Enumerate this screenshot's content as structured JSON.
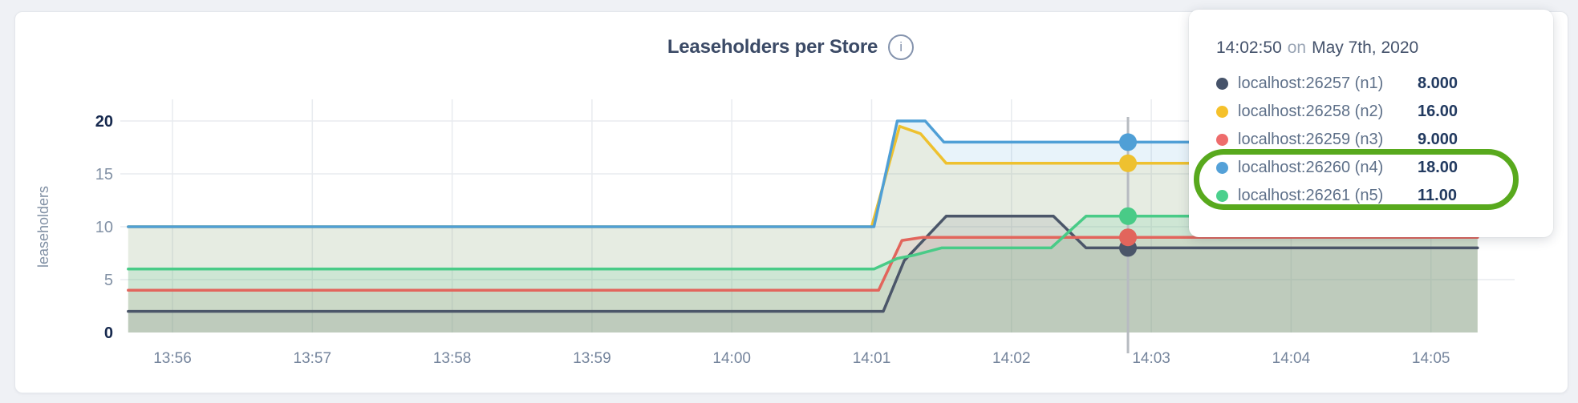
{
  "page": {
    "background": "#eff1f5"
  },
  "header": {
    "title": "Leaseholders per Store",
    "info_icon_char": "i"
  },
  "tooltip": {
    "time": "14:02:50",
    "on_word": "on",
    "date": "May 7th, 2020",
    "rows": [
      {
        "color": "#46536a",
        "label": "localhost:26257 (n1)",
        "value": "8.000"
      },
      {
        "color": "#f5c12b",
        "label": "localhost:26258 (n2)",
        "value": "16.00"
      },
      {
        "color": "#ee6c6c",
        "label": "localhost:26259 (n3)",
        "value": "9.000"
      },
      {
        "color": "#54a1d8",
        "label": "localhost:26260 (n4)",
        "value": "18.00"
      },
      {
        "color": "#4bd08d",
        "label": "localhost:26261 (n5)",
        "value": "11.00"
      }
    ],
    "annotation_color": "#58a91d"
  },
  "chart_data": {
    "type": "area",
    "title": "Leaseholders per Store",
    "xlabel": "",
    "ylabel": "leaseholders",
    "ylim": [
      0,
      20
    ],
    "grid": true,
    "time_origin": "13:55:00",
    "x_ticks": [
      {
        "t": 60,
        "label": "13:56"
      },
      {
        "t": 120,
        "label": "13:57"
      },
      {
        "t": 180,
        "label": "13:58"
      },
      {
        "t": 240,
        "label": "13:59"
      },
      {
        "t": 300,
        "label": "14:00"
      },
      {
        "t": 360,
        "label": "14:01"
      },
      {
        "t": 420,
        "label": "14:02"
      },
      {
        "t": 480,
        "label": "14:03"
      },
      {
        "t": 540,
        "label": "14:04"
      },
      {
        "t": 600,
        "label": "14:05"
      }
    ],
    "y_ticks": [
      {
        "v": 0,
        "label": "0",
        "strong": true
      },
      {
        "v": 5,
        "label": "5",
        "strong": false
      },
      {
        "v": 10,
        "label": "10",
        "strong": false
      },
      {
        "v": 15,
        "label": "15",
        "strong": false
      },
      {
        "v": 20,
        "label": "20",
        "strong": true
      }
    ],
    "series": [
      {
        "id": "n1",
        "name": "localhost:26257 (n1)",
        "color": "#4b5669",
        "fill": "rgba(75,86,105,0.13)",
        "points": [
          [
            41,
            2
          ],
          [
            365,
            2
          ],
          [
            374,
            6.8
          ],
          [
            392,
            11
          ],
          [
            438,
            11
          ],
          [
            452,
            8
          ],
          [
            620,
            8
          ]
        ]
      },
      {
        "id": "n2",
        "name": "localhost:26258 (n2)",
        "color": "#eec12f",
        "fill": "rgba(238,193,47,0.13)",
        "points": [
          [
            41,
            10
          ],
          [
            360,
            10
          ],
          [
            372,
            19.5
          ],
          [
            381,
            18.8
          ],
          [
            392,
            16
          ],
          [
            620,
            16
          ]
        ]
      },
      {
        "id": "n3",
        "name": "localhost:26259 (n3)",
        "color": "#e2655c",
        "fill": "rgba(226,101,92,0.12)",
        "points": [
          [
            41,
            4
          ],
          [
            363,
            4
          ],
          [
            373,
            8.7
          ],
          [
            382,
            9
          ],
          [
            620,
            9
          ]
        ]
      },
      {
        "id": "n4",
        "name": "localhost:26260 (n4)",
        "color": "#4f9fd6",
        "fill": "rgba(79,159,214,0.13)",
        "points": [
          [
            41,
            10
          ],
          [
            361,
            10
          ],
          [
            371,
            20
          ],
          [
            383,
            20
          ],
          [
            391,
            18
          ],
          [
            620,
            18
          ]
        ]
      },
      {
        "id": "n5",
        "name": "localhost:26261 (n5)",
        "color": "#49cb87",
        "fill": "rgba(73,203,135,0.15)",
        "points": [
          [
            41,
            6
          ],
          [
            361,
            6
          ],
          [
            371,
            7
          ],
          [
            378,
            7.3
          ],
          [
            390,
            8
          ],
          [
            437,
            8
          ],
          [
            452,
            11
          ],
          [
            620,
            11
          ]
        ]
      }
    ],
    "hover": {
      "t": 470,
      "line_color": "#b7bbc1",
      "values": [
        {
          "series": "n1",
          "v": 8
        },
        {
          "series": "n2",
          "v": 16
        },
        {
          "series": "n3",
          "v": 9
        },
        {
          "series": "n4",
          "v": 18
        },
        {
          "series": "n5",
          "v": 11
        }
      ]
    }
  }
}
